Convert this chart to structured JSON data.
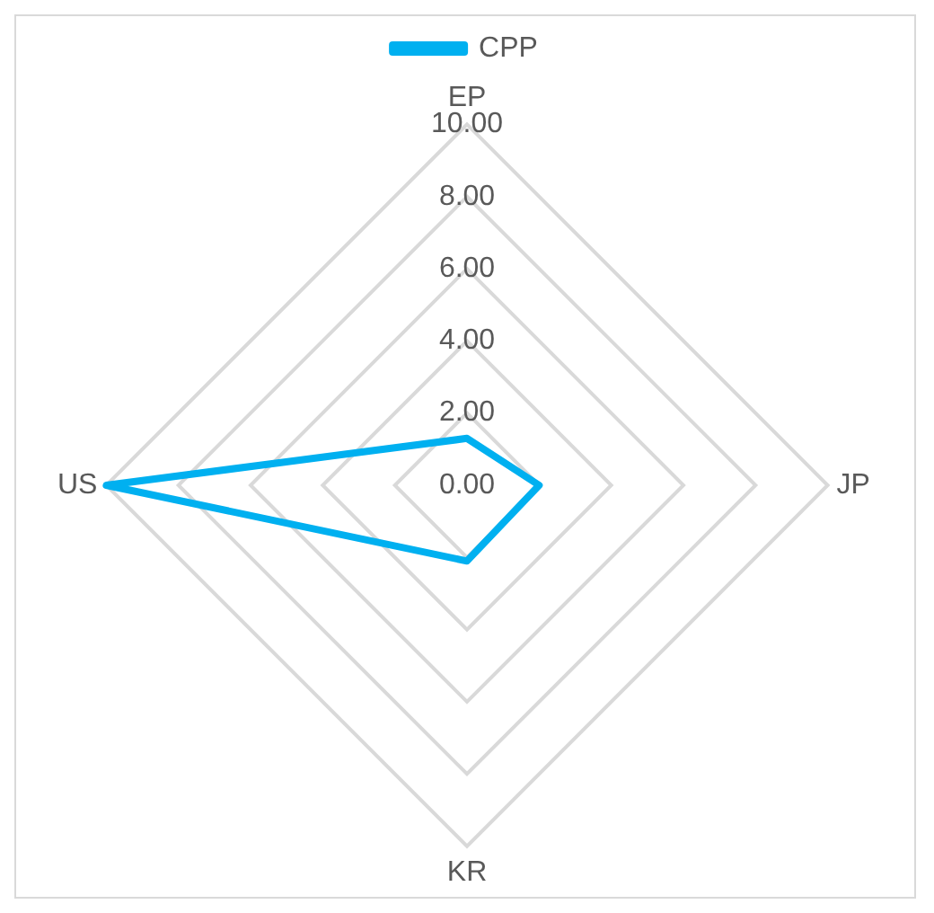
{
  "chart_data": {
    "type": "radar",
    "categories": [
      "EP",
      "JP",
      "KR",
      "US"
    ],
    "series": [
      {
        "name": "CPP",
        "color": "#00b0f0",
        "values": [
          1.3,
          2.0,
          2.1,
          10.0
        ]
      }
    ],
    "ylim": [
      0,
      10
    ],
    "yticks": [
      {
        "value": 0,
        "label": "0.00"
      },
      {
        "value": 2,
        "label": "2.00"
      },
      {
        "value": 4,
        "label": "4.00"
      },
      {
        "value": 6,
        "label": "6.00"
      },
      {
        "value": 8,
        "label": "8.00"
      },
      {
        "value": 10,
        "label": "10.00"
      }
    ],
    "grid": true,
    "legend": "top"
  }
}
